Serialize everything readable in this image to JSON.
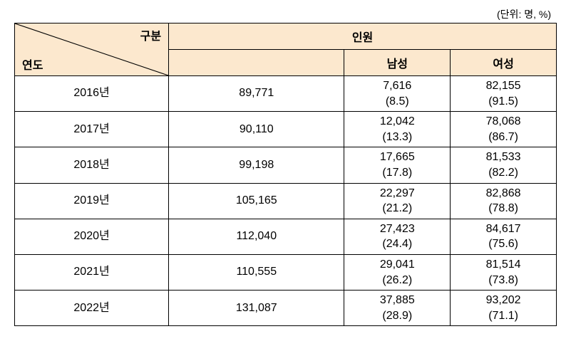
{
  "unit_label": "(단위: 명, %)",
  "header": {
    "diag_top": "구분",
    "diag_bottom": "연도",
    "people": "인원",
    "male": "남성",
    "female": "여성"
  },
  "styling": {
    "header_bg_color": "#fce8ce",
    "border_color": "#000000",
    "background_color": "#ffffff",
    "text_color": "#000000",
    "font_size_body": 16,
    "font_size_unit": 14,
    "diagonal_line_color": "#000000"
  },
  "columns": {
    "year_width": 215,
    "total_width": 245,
    "sub_width": 148
  },
  "rows": [
    {
      "year": "2016년",
      "total": "89,771",
      "male_count": "7,616",
      "male_pct": "(8.5)",
      "female_count": "82,155",
      "female_pct": "(91.5)"
    },
    {
      "year": "2017년",
      "total": "90,110",
      "male_count": "12,042",
      "male_pct": "(13.3)",
      "female_count": "78,068",
      "female_pct": "(86.7)"
    },
    {
      "year": "2018년",
      "total": "99,198",
      "male_count": "17,665",
      "male_pct": "(17.8)",
      "female_count": "81,533",
      "female_pct": "(82.2)"
    },
    {
      "year": "2019년",
      "total": "105,165",
      "male_count": "22,297",
      "male_pct": "(21.2)",
      "female_count": "82,868",
      "female_pct": "(78.8)"
    },
    {
      "year": "2020년",
      "total": "112,040",
      "male_count": "27,423",
      "male_pct": "(24.4)",
      "female_count": "84,617",
      "female_pct": "(75.6)"
    },
    {
      "year": "2021년",
      "total": "110,555",
      "male_count": "29,041",
      "male_pct": "(26.2)",
      "female_count": "81,514",
      "female_pct": "(73.8)"
    },
    {
      "year": "2022년",
      "total": "131,087",
      "male_count": "37,885",
      "male_pct": "(28.9)",
      "female_count": "93,202",
      "female_pct": "(71.1)"
    }
  ]
}
